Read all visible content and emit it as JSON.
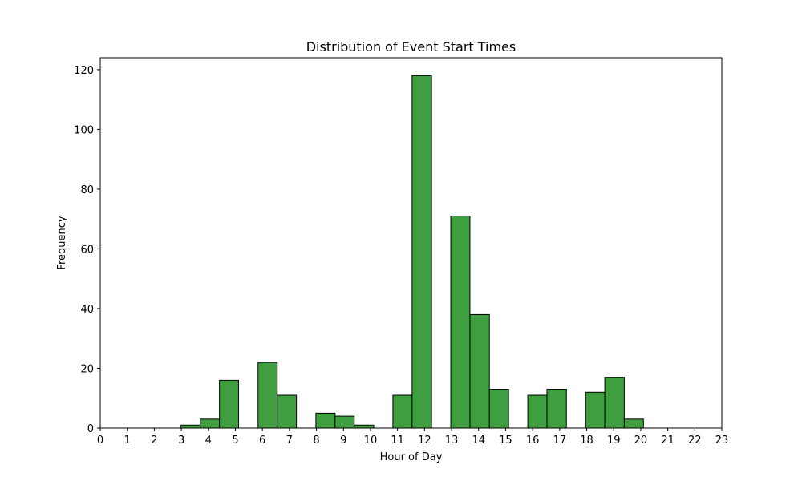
{
  "chart_data": {
    "type": "bar",
    "title": "Distribution of Event Start Times",
    "xlabel": "Hour of Day",
    "ylabel": "Frequency",
    "xlim": [
      0,
      23
    ],
    "ylim": [
      0,
      124
    ],
    "x_ticks": [
      0,
      1,
      2,
      3,
      4,
      5,
      6,
      7,
      8,
      9,
      10,
      11,
      12,
      13,
      14,
      15,
      16,
      17,
      18,
      19,
      20,
      21,
      22,
      23
    ],
    "y_ticks": [
      0,
      20,
      40,
      60,
      80,
      100,
      120
    ],
    "bar_color": "#3f9e3f",
    "edge_color": "#000000",
    "bins": [
      {
        "start": 2.99,
        "end": 3.7,
        "value": 1
      },
      {
        "start": 3.7,
        "end": 4.41,
        "value": 3
      },
      {
        "start": 4.41,
        "end": 5.12,
        "value": 16
      },
      {
        "start": 5.12,
        "end": 5.84,
        "value": 0
      },
      {
        "start": 5.84,
        "end": 6.55,
        "value": 22
      },
      {
        "start": 6.55,
        "end": 7.26,
        "value": 11
      },
      {
        "start": 7.26,
        "end": 7.98,
        "value": 0
      },
      {
        "start": 7.98,
        "end": 8.69,
        "value": 5
      },
      {
        "start": 8.69,
        "end": 9.4,
        "value": 4
      },
      {
        "start": 9.4,
        "end": 10.12,
        "value": 1
      },
      {
        "start": 10.12,
        "end": 10.83,
        "value": 0
      },
      {
        "start": 10.83,
        "end": 11.54,
        "value": 11
      },
      {
        "start": 11.54,
        "end": 12.26,
        "value": 118
      },
      {
        "start": 12.26,
        "end": 12.97,
        "value": 0
      },
      {
        "start": 12.97,
        "end": 13.68,
        "value": 71
      },
      {
        "start": 13.68,
        "end": 14.4,
        "value": 38
      },
      {
        "start": 14.4,
        "end": 15.11,
        "value": 13
      },
      {
        "start": 15.11,
        "end": 15.82,
        "value": 0
      },
      {
        "start": 15.82,
        "end": 16.53,
        "value": 11
      },
      {
        "start": 16.53,
        "end": 17.25,
        "value": 13
      },
      {
        "start": 17.25,
        "end": 17.96,
        "value": 0
      },
      {
        "start": 17.96,
        "end": 18.67,
        "value": 12
      },
      {
        "start": 18.67,
        "end": 19.39,
        "value": 17
      },
      {
        "start": 19.39,
        "end": 20.1,
        "value": 3
      }
    ]
  }
}
